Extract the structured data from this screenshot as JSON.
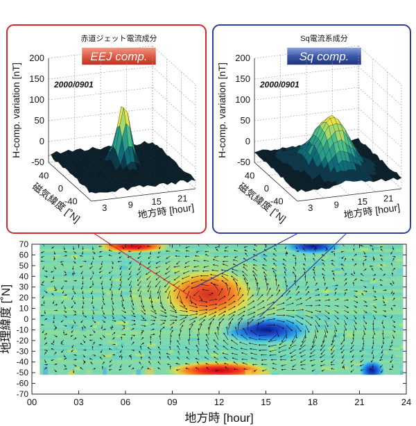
{
  "colors": {
    "eej_frame": "#d9262d",
    "sq_frame": "#2a3fa0",
    "eej_badge": "#e05a45",
    "sq_badge": "#3a56a8"
  },
  "panels": [
    {
      "id": "eej",
      "subtitle": "赤道ジェット電流成分",
      "badge": "EEJ comp.",
      "date": "2000/0901",
      "zlabel": "H-comp. variation [nT]",
      "xlabel": "地方時 [hour]",
      "ylabel": "磁気緯度 [˚N]",
      "zticks": [
        "200",
        "150",
        "100",
        "50",
        "0",
        "-50"
      ],
      "xticks": [
        "3",
        "9",
        "15",
        "21"
      ],
      "yticks": [
        "40",
        "0",
        "-40"
      ]
    },
    {
      "id": "sq",
      "subtitle": "Sq電流系成分",
      "badge": "Sq comp.",
      "date": "2000/0901",
      "zlabel": "H-comp. variation [nT]",
      "xlabel": "地方時 [hour]",
      "ylabel": "磁気緯度 [˚N]",
      "zticks": [
        "200",
        "150",
        "100",
        "50",
        "0",
        "-50"
      ],
      "xticks": [
        "3",
        "9",
        "15",
        "21"
      ],
      "yticks": [
        "40",
        "0",
        "-40"
      ]
    }
  ],
  "chart_data": {
    "type": "heatmap",
    "xlabel": "地方時 [hour]",
    "ylabel": "地理緯度 [˚N]",
    "xticks": [
      "00",
      "03",
      "06",
      "09",
      "12",
      "15",
      "18",
      "21",
      "24"
    ],
    "yticks": [
      "70",
      "60",
      "50",
      "40",
      "30",
      "20",
      "10",
      "0",
      "-10",
      "-20",
      "-30",
      "-40",
      "-50",
      "-60",
      "-70"
    ],
    "xlim": [
      0,
      24
    ],
    "ylim": [
      -70,
      70
    ],
    "data_extent": {
      "x": [
        0.5,
        23.8
      ],
      "y": [
        -52,
        70
      ]
    },
    "features": [
      {
        "kind": "positive",
        "x": 11.3,
        "y": 23,
        "value": 1.0
      },
      {
        "kind": "negative",
        "x": 15.0,
        "y": -10,
        "value": -0.85
      },
      {
        "kind": "positive",
        "x": 12.0,
        "y": -48,
        "value": 0.6
      },
      {
        "kind": "negative",
        "x": 21.8,
        "y": -48,
        "value": -0.7
      },
      {
        "kind": "negative",
        "x": 18.0,
        "y": 68,
        "value": -0.55
      },
      {
        "kind": "positive",
        "x": 6.5,
        "y": 68,
        "value": 0.55
      }
    ]
  }
}
